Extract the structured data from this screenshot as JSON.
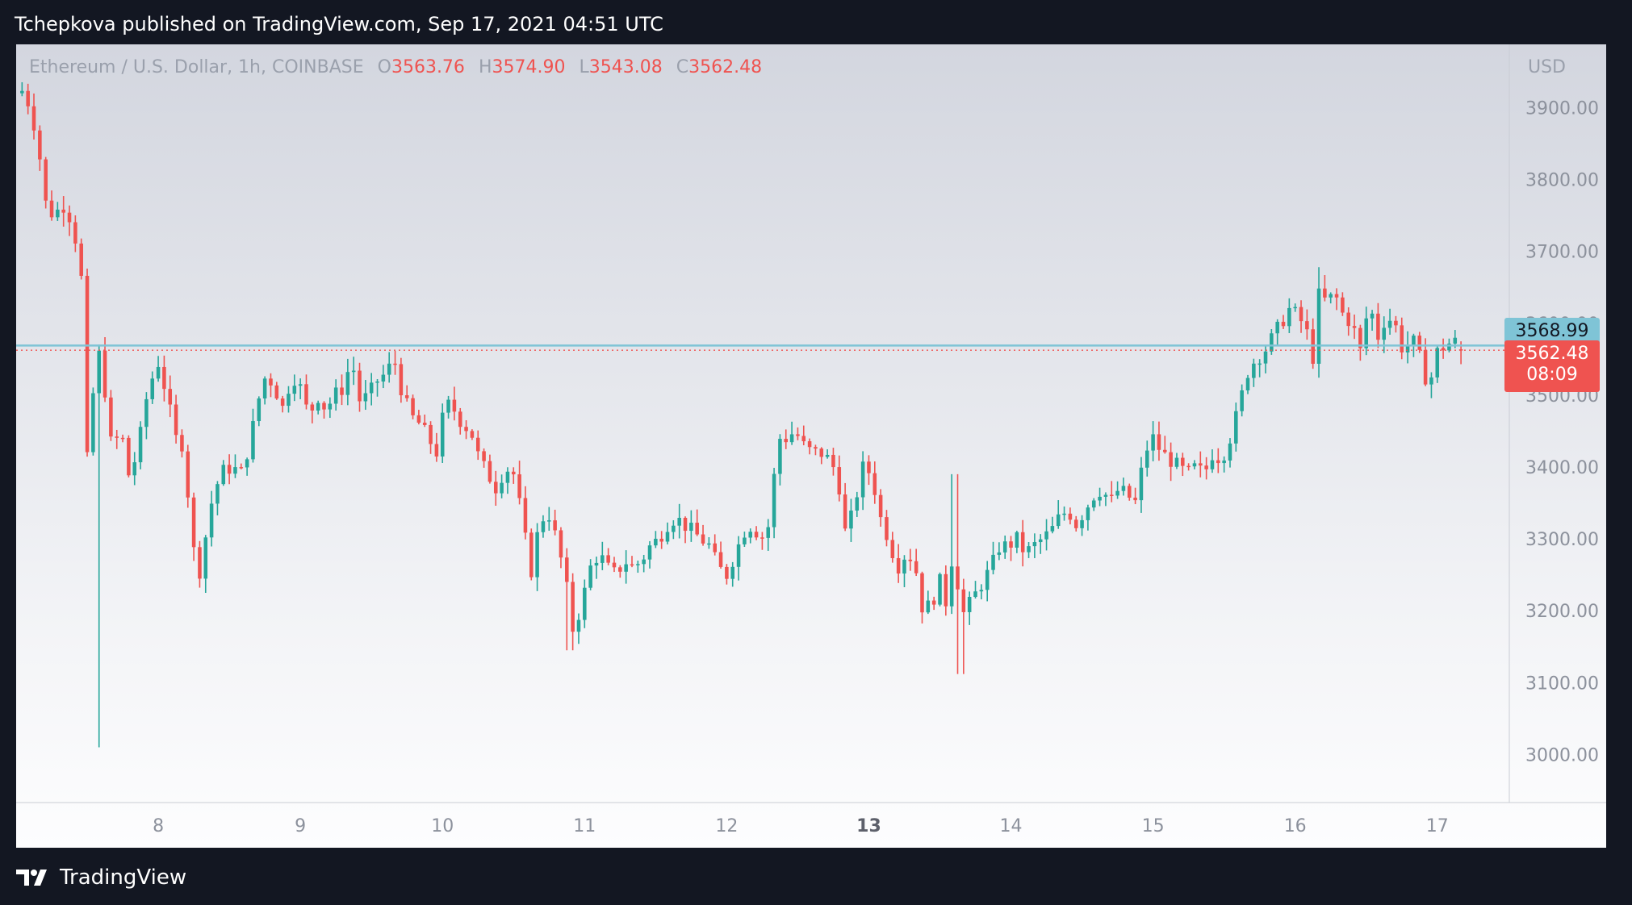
{
  "header": {
    "published_text": "Tchepkova published on TradingView.com, Sep 17, 2021 04:51 UTC"
  },
  "legend": {
    "symbol": "Ethereum / U.S. Dollar, 1h, COINBASE",
    "open_label": "O",
    "open_value": "3563.76",
    "high_label": "H",
    "high_value": "3574.90",
    "low_label": "L",
    "low_value": "3543.08",
    "close_label": "C",
    "close_value": "3562.48"
  },
  "currency": "USD",
  "price_tags": {
    "line_price": "3568.99",
    "last_price": "3562.48",
    "countdown": "08:09"
  },
  "brand": {
    "name": "TradingView"
  },
  "colors": {
    "up": "#26a69a",
    "down": "#ef5350",
    "horizontal_line": "#7fc4d6",
    "last_price_line": "#ef5350"
  },
  "chart_data": {
    "type": "candlestick",
    "title": "Ethereum / U.S. Dollar, 1h, COINBASE",
    "ylabel": "USD",
    "ylim": [
      2950,
      3960
    ],
    "y_ticks": [
      "3000.00",
      "3100.00",
      "3200.00",
      "3300.00",
      "3400.00",
      "3500.00",
      "3600.00",
      "3700.00",
      "3800.00",
      "3900.00"
    ],
    "x_ticks": [
      {
        "label": "8",
        "day": 8,
        "bold": false
      },
      {
        "label": "9",
        "day": 9,
        "bold": false
      },
      {
        "label": "10",
        "day": 10,
        "bold": false
      },
      {
        "label": "11",
        "day": 11,
        "bold": false
      },
      {
        "label": "12",
        "day": 12,
        "bold": false
      },
      {
        "label": "13",
        "day": 13,
        "bold": true
      },
      {
        "label": "14",
        "day": 14,
        "bold": false
      },
      {
        "label": "15",
        "day": 15,
        "bold": false
      },
      {
        "label": "16",
        "day": 16,
        "bold": false
      },
      {
        "label": "17",
        "day": 17,
        "bold": false
      }
    ],
    "x_range_days": [
      7.0,
      17.45
    ],
    "horizontal_line": 3568.99,
    "last_price": 3562.48,
    "close_path": [
      [
        7.0,
        3920
      ],
      [
        7.06,
        3925
      ],
      [
        7.1,
        3895
      ],
      [
        7.15,
        3860
      ],
      [
        7.2,
        3770
      ],
      [
        7.26,
        3750
      ],
      [
        7.33,
        3765
      ],
      [
        7.4,
        3740
      ],
      [
        7.46,
        3660
      ],
      [
        7.5,
        3410
      ],
      [
        7.55,
        3520
      ],
      [
        7.58,
        3560
      ],
      [
        7.63,
        3500
      ],
      [
        7.68,
        3410
      ],
      [
        7.73,
        3460
      ],
      [
        7.8,
        3380
      ],
      [
        7.87,
        3440
      ],
      [
        7.93,
        3510
      ],
      [
        8.0,
        3545
      ],
      [
        8.06,
        3500
      ],
      [
        8.12,
        3440
      ],
      [
        8.18,
        3430
      ],
      [
        8.24,
        3290
      ],
      [
        8.3,
        3250
      ],
      [
        8.35,
        3330
      ],
      [
        8.4,
        3370
      ],
      [
        8.46,
        3395
      ],
      [
        8.52,
        3400
      ],
      [
        8.58,
        3390
      ],
      [
        8.64,
        3430
      ],
      [
        8.7,
        3490
      ],
      [
        8.76,
        3530
      ],
      [
        8.82,
        3510
      ],
      [
        8.88,
        3480
      ],
      [
        8.94,
        3530
      ],
      [
        9.0,
        3510
      ],
      [
        9.06,
        3470
      ],
      [
        9.12,
        3500
      ],
      [
        9.18,
        3480
      ],
      [
        9.24,
        3500
      ],
      [
        9.3,
        3510
      ],
      [
        9.36,
        3550
      ],
      [
        9.42,
        3490
      ],
      [
        9.48,
        3500
      ],
      [
        9.54,
        3520
      ],
      [
        9.6,
        3530
      ],
      [
        9.66,
        3550
      ],
      [
        9.72,
        3500
      ],
      [
        9.78,
        3470
      ],
      [
        9.84,
        3460
      ],
      [
        9.9,
        3440
      ],
      [
        9.96,
        3420
      ],
      [
        10.02,
        3490
      ],
      [
        10.08,
        3480
      ],
      [
        10.14,
        3460
      ],
      [
        10.2,
        3450
      ],
      [
        10.26,
        3410
      ],
      [
        10.32,
        3390
      ],
      [
        10.38,
        3370
      ],
      [
        10.44,
        3400
      ],
      [
        10.5,
        3390
      ],
      [
        10.56,
        3330
      ],
      [
        10.62,
        3250
      ],
      [
        10.68,
        3320
      ],
      [
        10.74,
        3340
      ],
      [
        10.8,
        3300
      ],
      [
        10.86,
        3250
      ],
      [
        10.92,
        3170
      ],
      [
        10.98,
        3210
      ],
      [
        11.04,
        3260
      ],
      [
        11.1,
        3280
      ],
      [
        11.16,
        3260
      ],
      [
        11.22,
        3250
      ],
      [
        11.28,
        3270
      ],
      [
        11.34,
        3260
      ],
      [
        11.4,
        3270
      ],
      [
        11.46,
        3290
      ],
      [
        11.52,
        3300
      ],
      [
        11.58,
        3320
      ],
      [
        11.64,
        3330
      ],
      [
        11.7,
        3320
      ],
      [
        11.76,
        3310
      ],
      [
        11.82,
        3300
      ],
      [
        11.88,
        3290
      ],
      [
        11.94,
        3260
      ],
      [
        12.0,
        3250
      ],
      [
        12.06,
        3280
      ],
      [
        12.12,
        3310
      ],
      [
        12.18,
        3320
      ],
      [
        12.24,
        3300
      ],
      [
        12.3,
        3320
      ],
      [
        12.36,
        3440
      ],
      [
        12.42,
        3440
      ],
      [
        12.48,
        3450
      ],
      [
        12.54,
        3430
      ],
      [
        12.6,
        3420
      ],
      [
        12.66,
        3420
      ],
      [
        12.72,
        3410
      ],
      [
        12.78,
        3390
      ],
      [
        12.84,
        3300
      ],
      [
        12.9,
        3350
      ],
      [
        12.96,
        3400
      ],
      [
        13.02,
        3390
      ],
      [
        13.08,
        3330
      ],
      [
        13.14,
        3300
      ],
      [
        13.2,
        3260
      ],
      [
        13.26,
        3280
      ],
      [
        13.32,
        3270
      ],
      [
        13.38,
        3200
      ],
      [
        13.44,
        3210
      ],
      [
        13.5,
        3240
      ],
      [
        13.56,
        3200
      ],
      [
        13.6,
        3320
      ],
      [
        13.64,
        3190
      ],
      [
        13.68,
        3200
      ],
      [
        13.74,
        3220
      ],
      [
        13.8,
        3240
      ],
      [
        13.86,
        3260
      ],
      [
        13.92,
        3290
      ],
      [
        13.98,
        3290
      ],
      [
        14.04,
        3300
      ],
      [
        14.1,
        3280
      ],
      [
        14.16,
        3290
      ],
      [
        14.22,
        3300
      ],
      [
        14.28,
        3310
      ],
      [
        14.34,
        3330
      ],
      [
        14.4,
        3340
      ],
      [
        14.46,
        3320
      ],
      [
        14.52,
        3340
      ],
      [
        14.58,
        3360
      ],
      [
        14.64,
        3370
      ],
      [
        14.7,
        3350
      ],
      [
        14.76,
        3370
      ],
      [
        14.82,
        3360
      ],
      [
        14.88,
        3350
      ],
      [
        14.94,
        3420
      ],
      [
        15.0,
        3440
      ],
      [
        15.06,
        3420
      ],
      [
        15.12,
        3410
      ],
      [
        15.18,
        3400
      ],
      [
        15.24,
        3390
      ],
      [
        15.3,
        3400
      ],
      [
        15.36,
        3390
      ],
      [
        15.42,
        3420
      ],
      [
        15.48,
        3410
      ],
      [
        15.54,
        3440
      ],
      [
        15.6,
        3480
      ],
      [
        15.66,
        3530
      ],
      [
        15.72,
        3550
      ],
      [
        15.78,
        3560
      ],
      [
        15.84,
        3580
      ],
      [
        15.9,
        3600
      ],
      [
        15.96,
        3620
      ],
      [
        16.02,
        3610
      ],
      [
        16.08,
        3590
      ],
      [
        16.12,
        3540
      ],
      [
        16.16,
        3640
      ],
      [
        16.22,
        3630
      ],
      [
        16.28,
        3640
      ],
      [
        16.34,
        3610
      ],
      [
        16.4,
        3600
      ],
      [
        16.46,
        3560
      ],
      [
        16.52,
        3630
      ],
      [
        16.58,
        3580
      ],
      [
        16.64,
        3610
      ],
      [
        16.7,
        3600
      ],
      [
        16.76,
        3560
      ],
      [
        16.82,
        3580
      ],
      [
        16.88,
        3550
      ],
      [
        16.94,
        3510
      ],
      [
        17.0,
        3560
      ],
      [
        17.06,
        3570
      ],
      [
        17.12,
        3575
      ],
      [
        17.18,
        3563
      ]
    ]
  }
}
